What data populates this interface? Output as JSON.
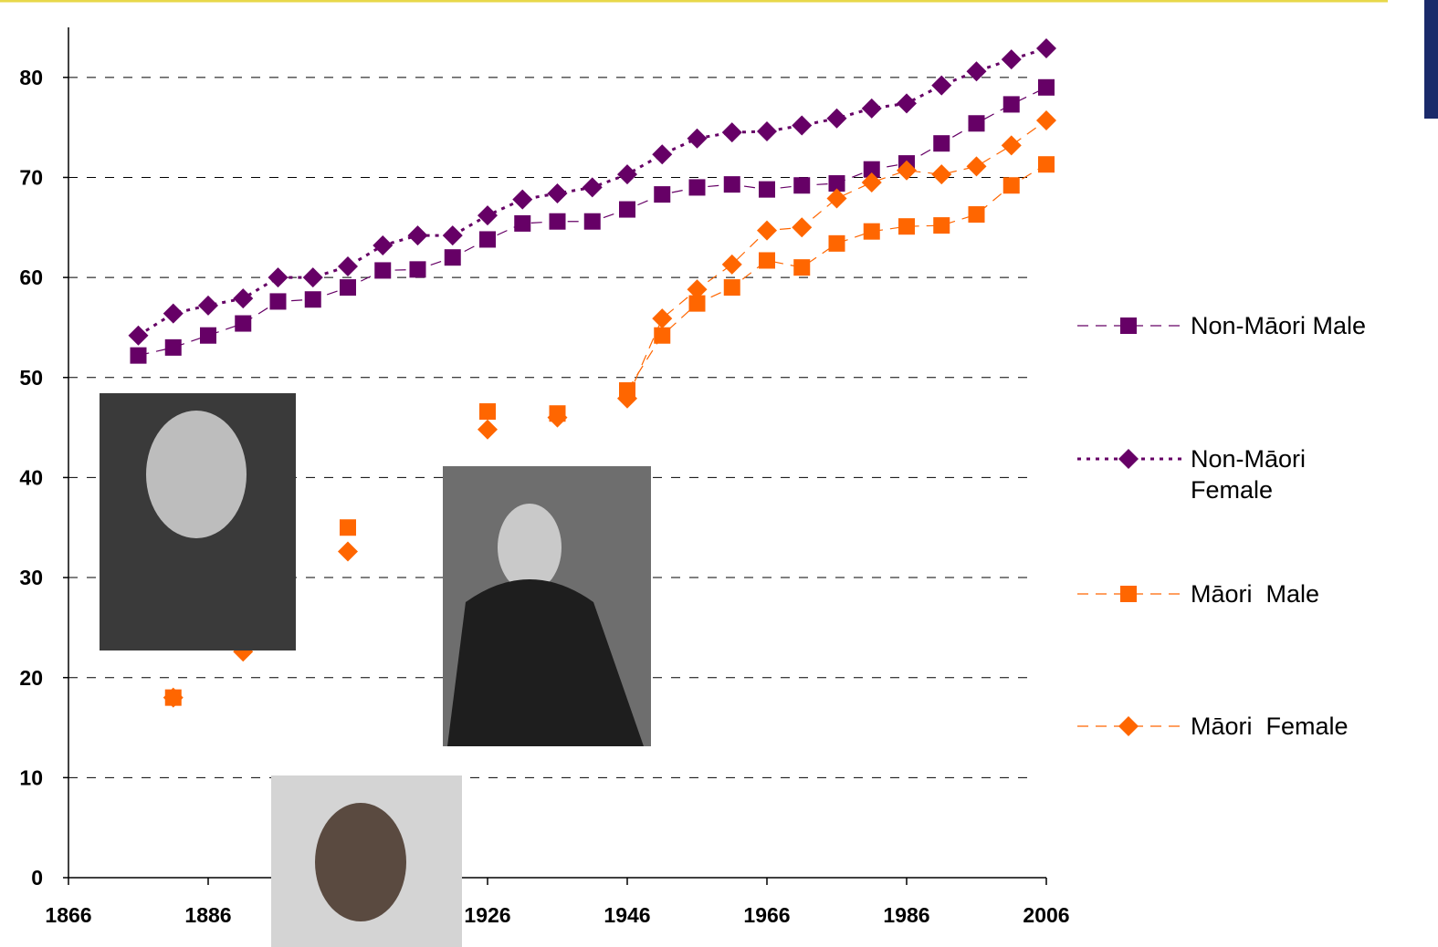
{
  "chart_data": {
    "type": "line",
    "x": [
      1876,
      1881,
      1886,
      1891,
      1896,
      1901,
      1906,
      1911,
      1916,
      1921,
      1926,
      1931,
      1936,
      1941,
      1946,
      1951,
      1956,
      1961,
      1966,
      1971,
      1976,
      1981,
      1986,
      1991,
      1996,
      2001,
      2006
    ],
    "xlim": [
      1866,
      2006
    ],
    "xticks": [
      1866,
      1886,
      1906,
      1926,
      1946,
      1966,
      1986,
      2006
    ],
    "ylim": [
      0,
      85
    ],
    "yticks": [
      0,
      10,
      20,
      30,
      40,
      50,
      60,
      70,
      80
    ],
    "grid": true,
    "series": [
      {
        "name": "Non-Māori Male",
        "color": "#660066",
        "marker": "square",
        "line": "dashed",
        "values": [
          52.2,
          53.0,
          54.2,
          55.4,
          57.6,
          57.8,
          59.0,
          60.7,
          60.8,
          62.0,
          63.8,
          65.4,
          65.6,
          65.6,
          66.8,
          68.3,
          69.0,
          69.3,
          68.8,
          69.2,
          69.4,
          70.8,
          71.4,
          73.4,
          75.4,
          77.3,
          79.0
        ]
      },
      {
        "name": "Non-Māori Female",
        "color": "#660066",
        "marker": "diamond",
        "line": "dotted",
        "values": [
          54.2,
          56.4,
          57.2,
          57.9,
          60.0,
          60.0,
          61.1,
          63.2,
          64.2,
          64.2,
          66.2,
          67.8,
          68.4,
          69.0,
          70.3,
          72.3,
          73.9,
          74.5,
          74.6,
          75.2,
          75.9,
          76.9,
          77.4,
          79.2,
          80.6,
          81.8,
          82.9
        ]
      },
      {
        "name": "Māori  Male",
        "color": "#ff6600",
        "marker": "square",
        "line": "dashed",
        "values": [
          null,
          18.0,
          null,
          null,
          null,
          null,
          35.0,
          null,
          null,
          null,
          46.6,
          null,
          46.4,
          null,
          48.7,
          54.2,
          57.4,
          59.0,
          61.7,
          61.0,
          63.4,
          64.6,
          65.1,
          65.2,
          66.3,
          69.2,
          71.3
        ]
      },
      {
        "name": "Māori  Female",
        "color": "#ff6600",
        "marker": "diamond",
        "line": "dashed",
        "values": [
          null,
          18.0,
          null,
          22.6,
          null,
          null,
          32.6,
          null,
          null,
          null,
          44.8,
          null,
          46.0,
          null,
          47.9,
          55.9,
          58.8,
          61.3,
          64.7,
          65.0,
          67.9,
          69.5,
          70.7,
          70.3,
          71.1,
          73.2,
          75.7
        ]
      }
    ]
  }
}
